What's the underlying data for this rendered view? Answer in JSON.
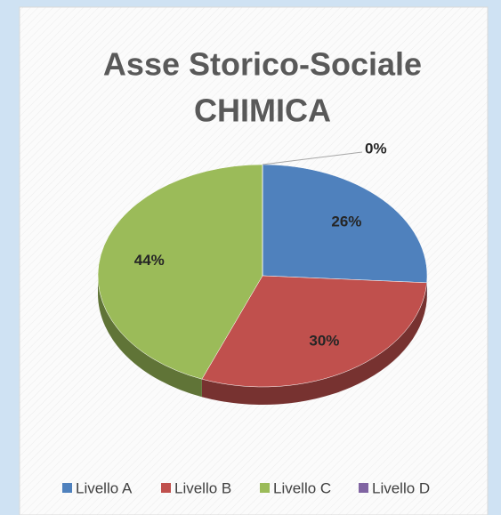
{
  "chart_data": {
    "type": "pie",
    "title": [
      "Asse Storico-Sociale",
      "CHIMICA"
    ],
    "categories": [
      "Livello A",
      "Livello B",
      "Livello C",
      "Livello D"
    ],
    "values": [
      26,
      30,
      44,
      0
    ],
    "value_labels": [
      "26%",
      "30%",
      "44%",
      "0%"
    ],
    "colors": [
      "#4f81bd",
      "#c0504d",
      "#9bbb59",
      "#8064a2"
    ],
    "legend": "bottom"
  }
}
